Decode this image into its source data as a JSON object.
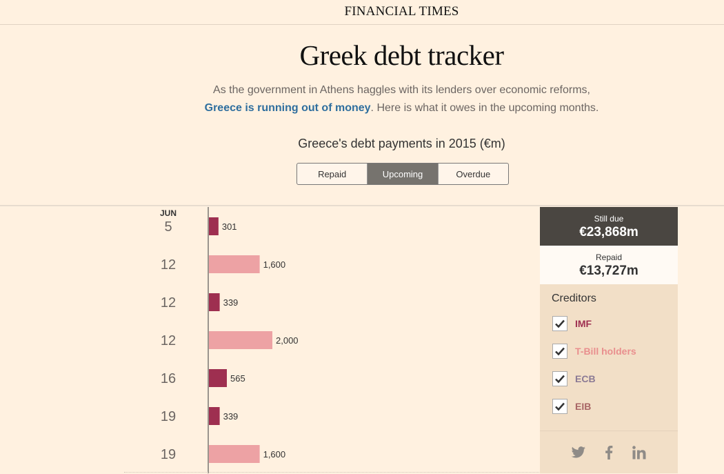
{
  "masthead": "FINANCIAL TIMES",
  "title": "Greek debt tracker",
  "intro": {
    "before": "As the government in Athens haggles with its lenders over economic reforms,",
    "link": "Greece is running out of money",
    "after": ". Here is what it owes in the upcoming months."
  },
  "chart_title": "Greece's debt payments in 2015 (€m)",
  "tabs": [
    {
      "label": "Repaid",
      "active": false
    },
    {
      "label": "Upcoming",
      "active": true
    },
    {
      "label": "Overdue",
      "active": false
    }
  ],
  "summary": {
    "still_due_label": "Still due",
    "still_due_value": "€23,868m",
    "repaid_label": "Repaid",
    "repaid_value": "€13,727m"
  },
  "creditors": {
    "title": "Creditors",
    "items": [
      {
        "name": "IMF",
        "color": "#9e2f50",
        "checked": true
      },
      {
        "name": "T-Bill holders",
        "color": "#eda2a4",
        "checked": true
      },
      {
        "name": "ECB",
        "color": "#8b7a95",
        "checked": true
      },
      {
        "name": "EIB",
        "color": "#a86565",
        "checked": true
      }
    ]
  },
  "social": [
    "twitter-icon",
    "facebook-icon",
    "linkedin-icon"
  ],
  "chart_data": {
    "type": "bar",
    "orientation": "horizontal",
    "month": "JUN",
    "series_colors": {
      "IMF": "#9e2f50",
      "T-Bill holders": "#eda2a4"
    },
    "rows": [
      {
        "day": "5",
        "value": 301,
        "label": "301",
        "creditor": "IMF"
      },
      {
        "day": "12",
        "value": 1600,
        "label": "1,600",
        "creditor": "T-Bill holders"
      },
      {
        "day": "12",
        "value": 339,
        "label": "339",
        "creditor": "IMF"
      },
      {
        "day": "12",
        "value": 2000,
        "label": "2,000",
        "creditor": "T-Bill holders"
      },
      {
        "day": "16",
        "value": 565,
        "label": "565",
        "creditor": "IMF"
      },
      {
        "day": "19",
        "value": 339,
        "label": "339",
        "creditor": "IMF"
      },
      {
        "day": "19",
        "value": 1600,
        "label": "1,600",
        "creditor": "T-Bill holders"
      }
    ]
  }
}
